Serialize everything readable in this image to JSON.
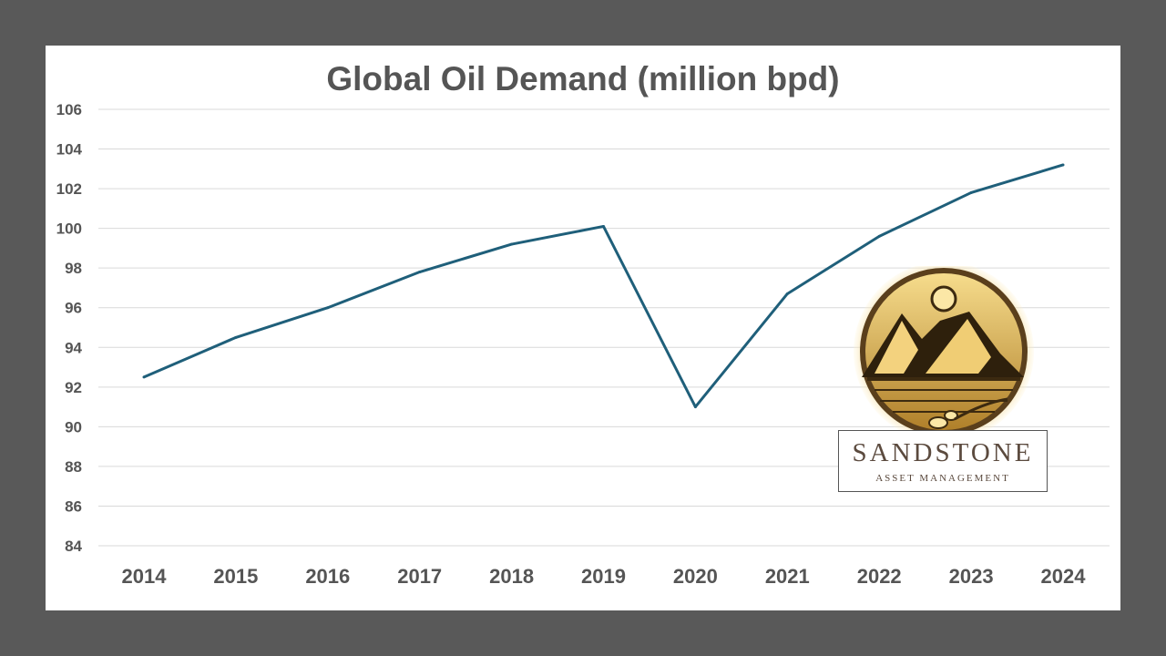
{
  "colors": {
    "background": "#595959",
    "card": "#ffffff",
    "line": "#1f5f7a",
    "grid": "#d9d9d9",
    "text": "#555555",
    "logo_gold": "#d4a94a",
    "logo_text": "#5b4a3e"
  },
  "chart_data": {
    "type": "line",
    "title": "Global Oil Demand (million bpd)",
    "xlabel": "",
    "ylabel": "",
    "categories": [
      "2014",
      "2015",
      "2016",
      "2017",
      "2018",
      "2019",
      "2020",
      "2021",
      "2022",
      "2023",
      "2024"
    ],
    "series": [
      {
        "values": [
          92.5,
          94.5,
          96.0,
          97.8,
          99.2,
          100.1,
          91.0,
          96.7,
          99.6,
          101.8,
          103.2
        ]
      }
    ],
    "ylim": [
      84,
      106
    ],
    "yticks": [
      84,
      86,
      88,
      90,
      92,
      94,
      96,
      98,
      100,
      102,
      104,
      106
    ],
    "grid": true,
    "legend": "none"
  },
  "logo": {
    "name": "SANDSTONE",
    "subtitle": "ASSET MANAGEMENT",
    "icon": "mountain-sun-emblem-icon"
  }
}
